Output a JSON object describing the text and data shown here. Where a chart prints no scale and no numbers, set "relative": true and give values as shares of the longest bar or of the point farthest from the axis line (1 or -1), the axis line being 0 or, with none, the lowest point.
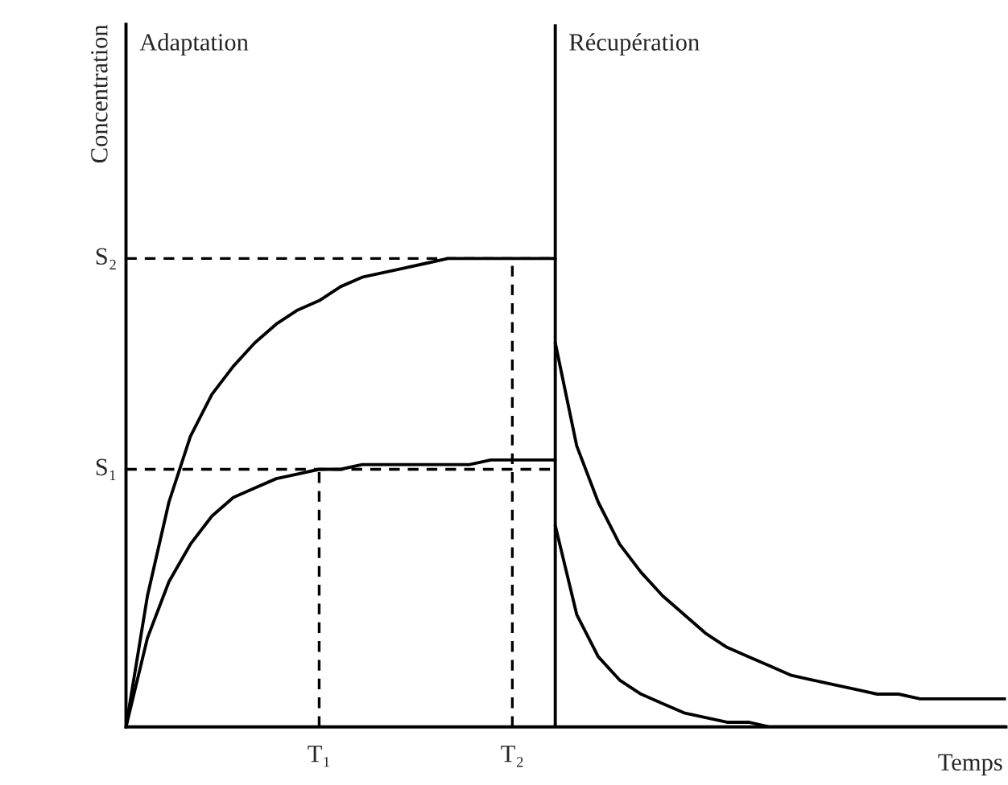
{
  "chart_data": {
    "type": "line",
    "relative": true,
    "xlabel": "Temps",
    "ylabel": "Concentration",
    "categories": [
      null,
      null,
      null,
      null,
      null,
      null,
      null,
      null,
      null,
      "T₁",
      null,
      null,
      null,
      null,
      null,
      null,
      null,
      null,
      "T₂",
      null,
      null,
      null,
      null,
      null,
      null,
      null,
      null,
      null,
      null,
      null,
      null,
      null,
      null,
      null,
      null,
      null,
      null,
      null,
      null,
      null,
      null,
      null
    ],
    "series": [
      {
        "color": "#000000",
        "values": [
          0,
          0.28,
          0.48,
          0.62,
          0.71,
          0.77,
          0.82,
          0.86,
          0.89,
          0.91,
          0.94,
          0.96,
          0.97,
          0.98,
          0.99,
          1.0,
          1.0,
          1.0,
          1.0,
          1.0,
          1.0,
          null,
          null,
          null,
          null,
          null,
          null,
          null,
          null,
          null,
          null,
          null,
          null,
          null,
          null,
          null,
          null,
          null,
          null,
          null,
          null,
          null
        ]
      },
      {
        "color": "#000000",
        "values": [
          0,
          0.19,
          0.31,
          0.39,
          0.45,
          0.49,
          0.51,
          0.53,
          0.54,
          0.55,
          0.55,
          0.56,
          0.56,
          0.56,
          0.56,
          0.56,
          0.56,
          0.57,
          0.57,
          0.57,
          0.57,
          null,
          null,
          null,
          null,
          null,
          null,
          null,
          null,
          null,
          null,
          null,
          null,
          null,
          null,
          null,
          null,
          null,
          null,
          null,
          null,
          null
        ]
      },
      {
        "color": "#000000",
        "values": [
          null,
          null,
          null,
          null,
          null,
          null,
          null,
          null,
          null,
          null,
          null,
          null,
          null,
          null,
          null,
          null,
          null,
          null,
          null,
          null,
          0.82,
          0.6,
          0.48,
          0.39,
          0.33,
          0.28,
          0.24,
          0.2,
          0.17,
          0.15,
          0.13,
          0.11,
          0.1,
          0.09,
          0.08,
          0.07,
          0.07,
          0.06,
          0.06,
          0.06,
          0.06,
          0.06
        ]
      },
      {
        "color": "#000000",
        "values": [
          null,
          null,
          null,
          null,
          null,
          null,
          null,
          null,
          null,
          null,
          null,
          null,
          null,
          null,
          null,
          null,
          null,
          null,
          null,
          null,
          0.43,
          0.24,
          0.15,
          0.1,
          0.07,
          0.05,
          0.03,
          0.02,
          0.01,
          0.01,
          0,
          0,
          0,
          0,
          0,
          0,
          0,
          0,
          0,
          0,
          0,
          0
        ]
      }
    ],
    "ref_lines": [
      {
        "axis": "y",
        "value": 0.55,
        "label": "S₁",
        "line_style": "dashed"
      },
      {
        "axis": "y",
        "value": 1.0,
        "label": "S₂",
        "line_style": "dashed"
      },
      {
        "axis": "x",
        "value": "T₁",
        "line_style": "dashed"
      },
      {
        "axis": "x",
        "value": "T₂",
        "line_style": "dashed"
      }
    ],
    "annotations": [
      "Adaptation",
      "Récupération"
    ],
    "line_style": "solid"
  }
}
